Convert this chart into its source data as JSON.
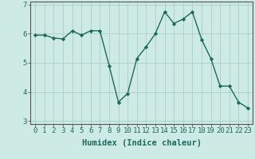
{
  "x": [
    0,
    1,
    2,
    3,
    4,
    5,
    6,
    7,
    8,
    9,
    10,
    11,
    12,
    13,
    14,
    15,
    16,
    17,
    18,
    19,
    20,
    21,
    22,
    23
  ],
  "y": [
    5.95,
    5.95,
    5.85,
    5.82,
    6.1,
    5.95,
    6.1,
    6.1,
    4.9,
    3.65,
    3.95,
    5.15,
    5.55,
    6.0,
    6.75,
    6.35,
    6.5,
    6.75,
    5.8,
    5.15,
    4.2,
    4.2,
    3.65,
    3.45
  ],
  "line_color": "#1a6b5a",
  "marker": "D",
  "marker_size": 2.2,
  "bg_color": "#ceeae5",
  "grid_color": "#aacfc8",
  "xlabel": "Humidex (Indice chaleur)",
  "ylim": [
    2.9,
    7.1
  ],
  "xlim": [
    -0.5,
    23.5
  ],
  "yticks": [
    3,
    4,
    5,
    6,
    7
  ],
  "xticks": [
    0,
    1,
    2,
    3,
    4,
    5,
    6,
    7,
    8,
    9,
    10,
    11,
    12,
    13,
    14,
    15,
    16,
    17,
    18,
    19,
    20,
    21,
    22,
    23
  ],
  "xlabel_fontsize": 7.5,
  "tick_fontsize": 6.5,
  "linewidth": 1.0
}
